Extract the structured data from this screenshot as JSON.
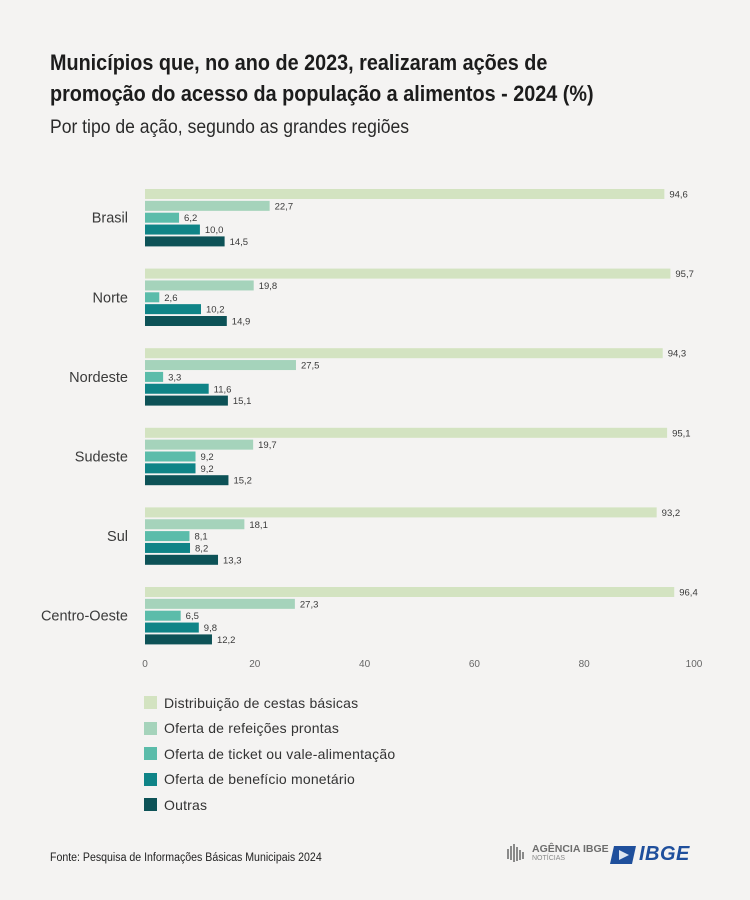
{
  "header": {
    "title_line1": "Municípios que, no ano de 2023, realizaram ações de",
    "title_line2": "promoção do acesso da população a alimentos - 2024 (%)",
    "subtitle": "Por tipo de ação, segundo as grandes regiões"
  },
  "chart_data": {
    "type": "bar",
    "orientation": "horizontal",
    "title": "Municípios que, no ano de 2023, realizaram ações de promoção do acesso da população a alimentos - 2024 (%)",
    "subtitle": "Por tipo de ação, segundo as grandes regiões",
    "categories": [
      "Brasil",
      "Norte",
      "Nordeste",
      "Sudeste",
      "Sul",
      "Centro-Oeste"
    ],
    "series": [
      {
        "name": "Distribuição de cestas básicas",
        "color": "#d3e3c1",
        "values": [
          94.6,
          95.7,
          94.3,
          95.1,
          93.2,
          96.4
        ],
        "labels": [
          "94,6",
          "95,7",
          "94,3",
          "95,1",
          "93,2",
          "96,4"
        ]
      },
      {
        "name": "Oferta de refeições prontas",
        "color": "#a5d3bb",
        "values": [
          22.7,
          19.8,
          27.5,
          19.7,
          18.1,
          27.3
        ],
        "labels": [
          "22,7",
          "19,8",
          "27,5",
          "19,7",
          "18,1",
          "27,3"
        ]
      },
      {
        "name": "Oferta de ticket ou vale-alimentação",
        "color": "#5bbcaa",
        "values": [
          6.2,
          2.6,
          3.3,
          9.2,
          8.1,
          6.5
        ],
        "labels": [
          "6,2",
          "2,6",
          "3,3",
          "9,2",
          "8,1",
          "6,5"
        ]
      },
      {
        "name": "Oferta de benefício monetário",
        "color": "#0f8487",
        "values": [
          10.0,
          10.2,
          11.6,
          9.2,
          8.2,
          9.8
        ],
        "labels": [
          "10,0",
          "10,2",
          "11,6",
          "9,2",
          "8,2",
          "9,8"
        ]
      },
      {
        "name": "Outras",
        "color": "#0d5257",
        "values": [
          14.5,
          14.9,
          15.1,
          15.2,
          13.3,
          12.2
        ],
        "labels": [
          "14,5",
          "14,9",
          "15,1",
          "15,2",
          "13,3",
          "12,2"
        ]
      }
    ],
    "xlim": [
      0,
      100
    ],
    "xticks": [
      0,
      20,
      40,
      60,
      80,
      100
    ],
    "xtick_labels": [
      "0",
      "20",
      "40",
      "60",
      "80",
      "100"
    ],
    "xlabel": "",
    "ylabel": "",
    "grid": false,
    "legend_position": "bottom-left"
  },
  "footer": {
    "source": "Fonte: Pesquisa de Informações Básicas Municipais 2024",
    "agencia_name": "AGÊNCIA IBGE",
    "agencia_sub": "NOTÍCIAS",
    "ibge_logo": "IBGE"
  }
}
